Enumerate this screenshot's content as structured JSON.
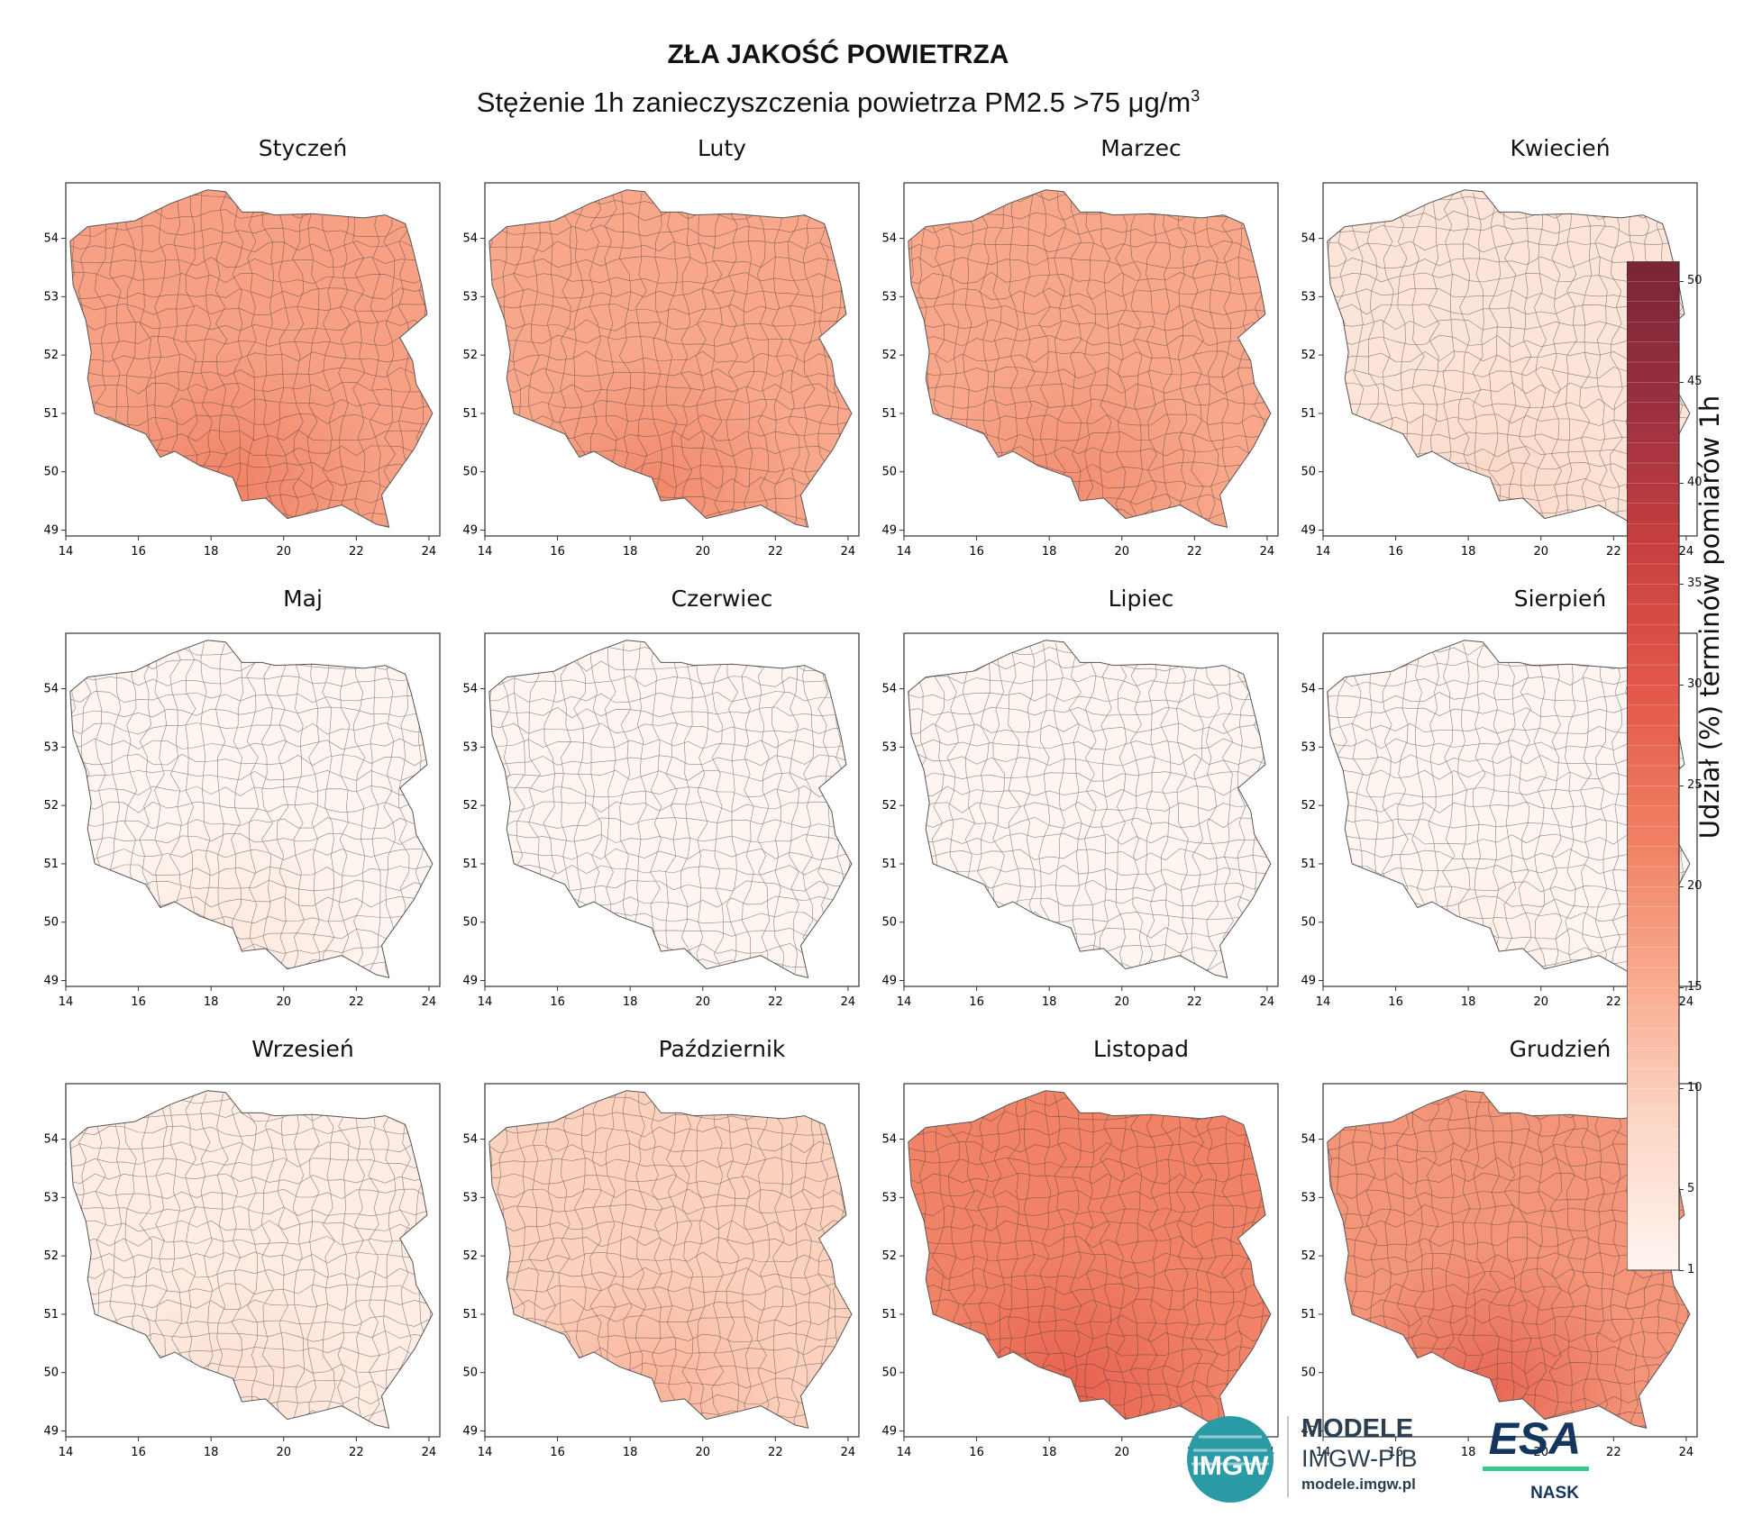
{
  "header": {
    "title": "ZŁA JAKOŚĆ POWIETRZA",
    "subtitle_main": "Stężenie 1h zanieczyszczenia powietrza PM2.5  >75 μg/m",
    "subtitle_sup": "3"
  },
  "chart_data": {
    "type": "choropleth-map-grid",
    "region": "Poland",
    "xlabel": "",
    "ylabel": "",
    "xlim": [
      14,
      24.3
    ],
    "ylim": [
      48.9,
      54.95
    ],
    "x_ticks": [
      "14",
      "16",
      "18",
      "20",
      "22",
      "24"
    ],
    "y_ticks": [
      "49",
      "50",
      "51",
      "52",
      "53",
      "54"
    ],
    "panels": [
      {
        "month": "Styczeń",
        "mean_share_pct": 17,
        "hotspot_share_pct": 22
      },
      {
        "month": "Luty",
        "mean_share_pct": 16,
        "hotspot_share_pct": 21
      },
      {
        "month": "Marzec",
        "mean_share_pct": 16,
        "hotspot_share_pct": 20
      },
      {
        "month": "Kwiecień",
        "mean_share_pct": 5,
        "hotspot_share_pct": 8
      },
      {
        "month": "Maj",
        "mean_share_pct": 1,
        "hotspot_share_pct": 4
      },
      {
        "month": "Czerwiec",
        "mean_share_pct": 0.5,
        "hotspot_share_pct": 1
      },
      {
        "month": "Lipiec",
        "mean_share_pct": 0.5,
        "hotspot_share_pct": 1
      },
      {
        "month": "Sierpień",
        "mean_share_pct": 0.5,
        "hotspot_share_pct": 2
      },
      {
        "month": "Wrzesień",
        "mean_share_pct": 3,
        "hotspot_share_pct": 6
      },
      {
        "month": "Październik",
        "mean_share_pct": 9,
        "hotspot_share_pct": 14
      },
      {
        "month": "Listopad",
        "mean_share_pct": 22,
        "hotspot_share_pct": 28
      },
      {
        "month": "Grudzień",
        "mean_share_pct": 19,
        "hotspot_share_pct": 27
      }
    ],
    "colorbar": {
      "label": "Udział (%) terminów pomiarów 1h",
      "min": 1,
      "max": 51,
      "ticks": [
        "1",
        "5",
        "10",
        "15",
        "20",
        "25",
        "30",
        "35",
        "40",
        "45",
        "50"
      ],
      "tick_values": [
        1,
        5,
        10,
        15,
        20,
        25,
        30,
        35,
        40,
        45,
        50
      ],
      "colors": [
        "#fff5f0",
        "#fcd7c6",
        "#f9ab8f",
        "#f07f62",
        "#e4594a",
        "#c8403f",
        "#9a3040",
        "#7a2436"
      ]
    }
  },
  "logos": {
    "imgw_icon_text": "IMGW",
    "modele_title": "MODELE",
    "modele_sub": "IMGW-PIB",
    "modele_url": "modele.imgw.pl",
    "esa_text": "ESA",
    "nask_text": "NASK"
  }
}
